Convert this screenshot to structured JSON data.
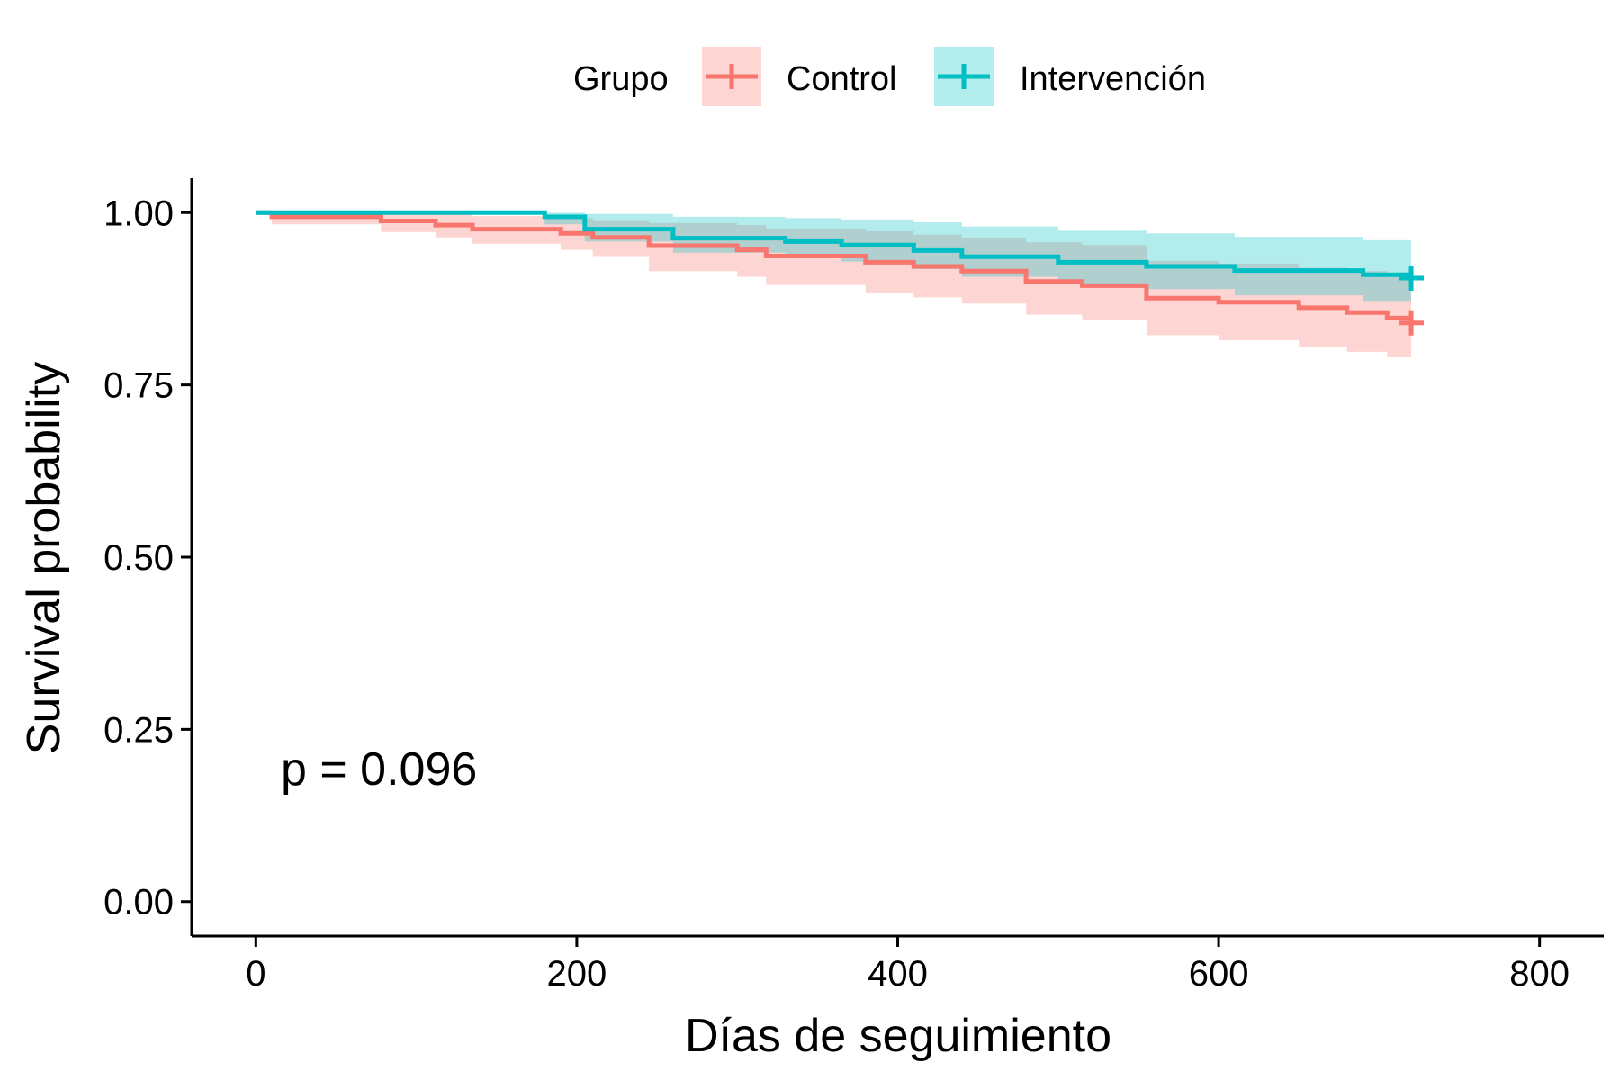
{
  "chart_data": {
    "type": "line",
    "subtype": "kaplan-meier step curves with confidence bands",
    "xlabel": "Días de seguimiento",
    "ylabel": "Survival probability",
    "xlim": [
      -40,
      840
    ],
    "ylim": [
      -0.05,
      1.05
    ],
    "x_ticks": [
      0,
      200,
      400,
      600,
      800
    ],
    "y_ticks": [
      0.0,
      0.25,
      0.5,
      0.75,
      1.0
    ],
    "x_tick_labels": [
      "0",
      "200",
      "400",
      "600",
      "800"
    ],
    "y_tick_labels": [
      "0.00",
      "0.25",
      "0.50",
      "0.75",
      "1.00"
    ],
    "grid": false,
    "legend": {
      "title": "Grupo",
      "position": "top",
      "entries": [
        "Control",
        "Intervención"
      ]
    },
    "annotation": "p = 0.096",
    "series": [
      {
        "name": "Control",
        "color": "#F8766D",
        "band_color": "#F8766D",
        "x": [
          0,
          10,
          78,
          112,
          135,
          190,
          210,
          245,
          300,
          318,
          380,
          410,
          440,
          480,
          515,
          555,
          600,
          650,
          680,
          705,
          720
        ],
        "y": [
          1.0,
          0.994,
          0.988,
          0.982,
          0.976,
          0.97,
          0.964,
          0.952,
          0.946,
          0.937,
          0.928,
          0.922,
          0.915,
          0.9,
          0.894,
          0.876,
          0.87,
          0.862,
          0.855,
          0.847,
          0.84
        ],
        "lower": [
          1.0,
          0.983,
          0.972,
          0.964,
          0.955,
          0.946,
          0.937,
          0.915,
          0.907,
          0.895,
          0.884,
          0.877,
          0.868,
          0.852,
          0.844,
          0.822,
          0.815,
          0.805,
          0.798,
          0.79,
          0.785
        ],
        "upper": [
          1.0,
          1.0,
          1.0,
          0.998,
          0.995,
          0.992,
          0.988,
          0.985,
          0.982,
          0.977,
          0.973,
          0.968,
          0.963,
          0.957,
          0.953,
          0.93,
          0.926,
          0.92,
          0.915,
          0.909,
          0.903
        ],
        "censor_x": [
          720
        ]
      },
      {
        "name": "Intervención",
        "color": "#00BFC4",
        "band_color": "#00BFC4",
        "x": [
          0,
          180,
          205,
          260,
          330,
          365,
          410,
          440,
          500,
          555,
          610,
          690,
          720
        ],
        "y": [
          1.0,
          0.994,
          0.976,
          0.963,
          0.958,
          0.953,
          0.945,
          0.936,
          0.928,
          0.922,
          0.916,
          0.91,
          0.905
        ],
        "lower": [
          1.0,
          0.983,
          0.958,
          0.942,
          0.936,
          0.929,
          0.918,
          0.907,
          0.897,
          0.889,
          0.88,
          0.872,
          0.865
        ],
        "upper": [
          1.0,
          1.0,
          0.998,
          0.994,
          0.992,
          0.99,
          0.986,
          0.98,
          0.974,
          0.97,
          0.965,
          0.96,
          0.955
        ],
        "censor_x": [
          720
        ]
      }
    ]
  }
}
